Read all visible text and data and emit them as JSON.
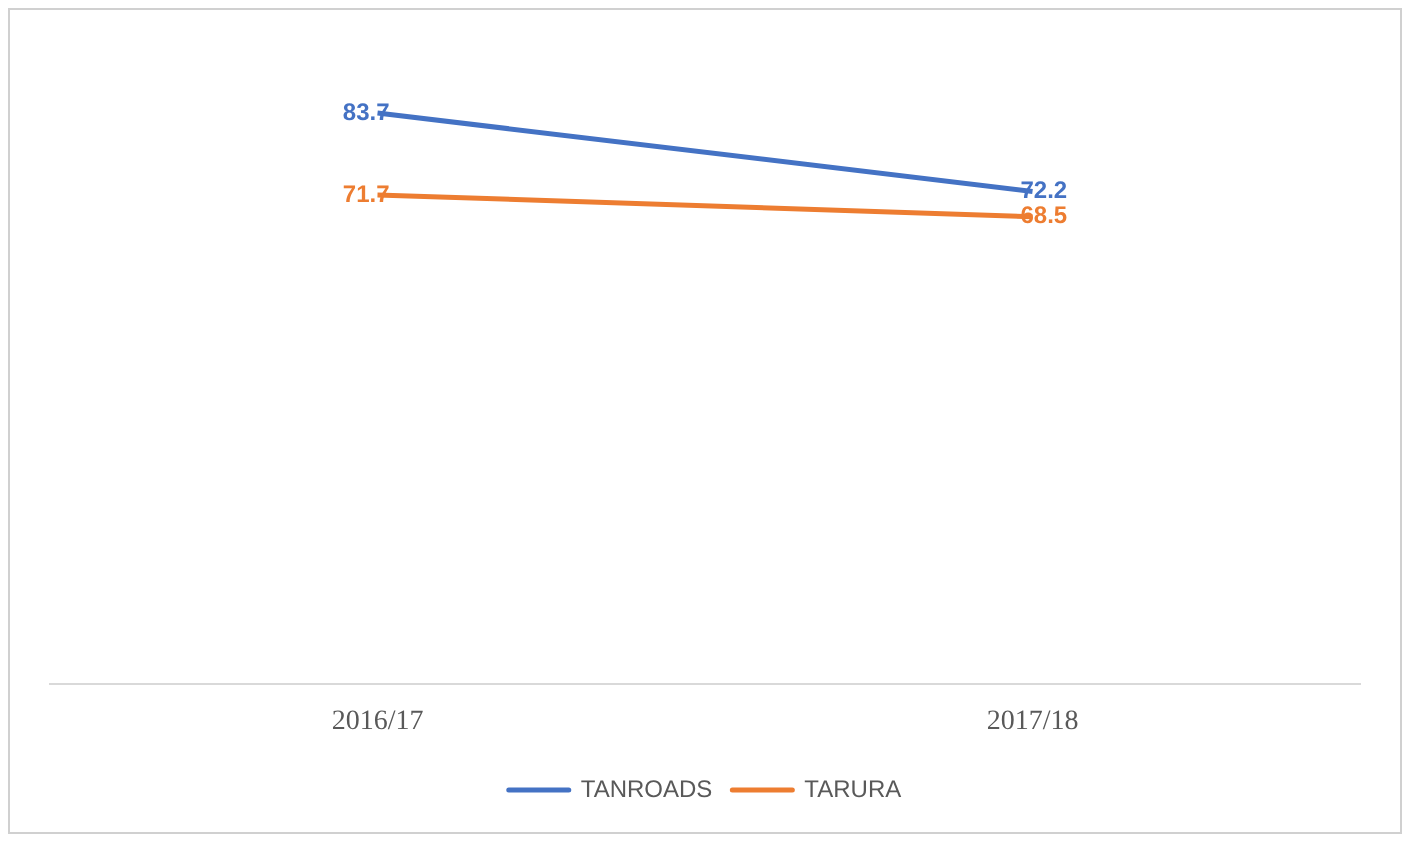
{
  "chart_data": {
    "type": "line",
    "categories": [
      "2016/17",
      "2017/18"
    ],
    "series": [
      {
        "name": "TANROADS",
        "color": "#4472c4",
        "values": [
          83.7,
          72.2
        ]
      },
      {
        "name": "TARURA",
        "color": "#ed7d31",
        "values": [
          71.7,
          68.5
        ]
      }
    ],
    "data_labels": true,
    "legend": "bottom",
    "marker": "none",
    "grid": false
  }
}
